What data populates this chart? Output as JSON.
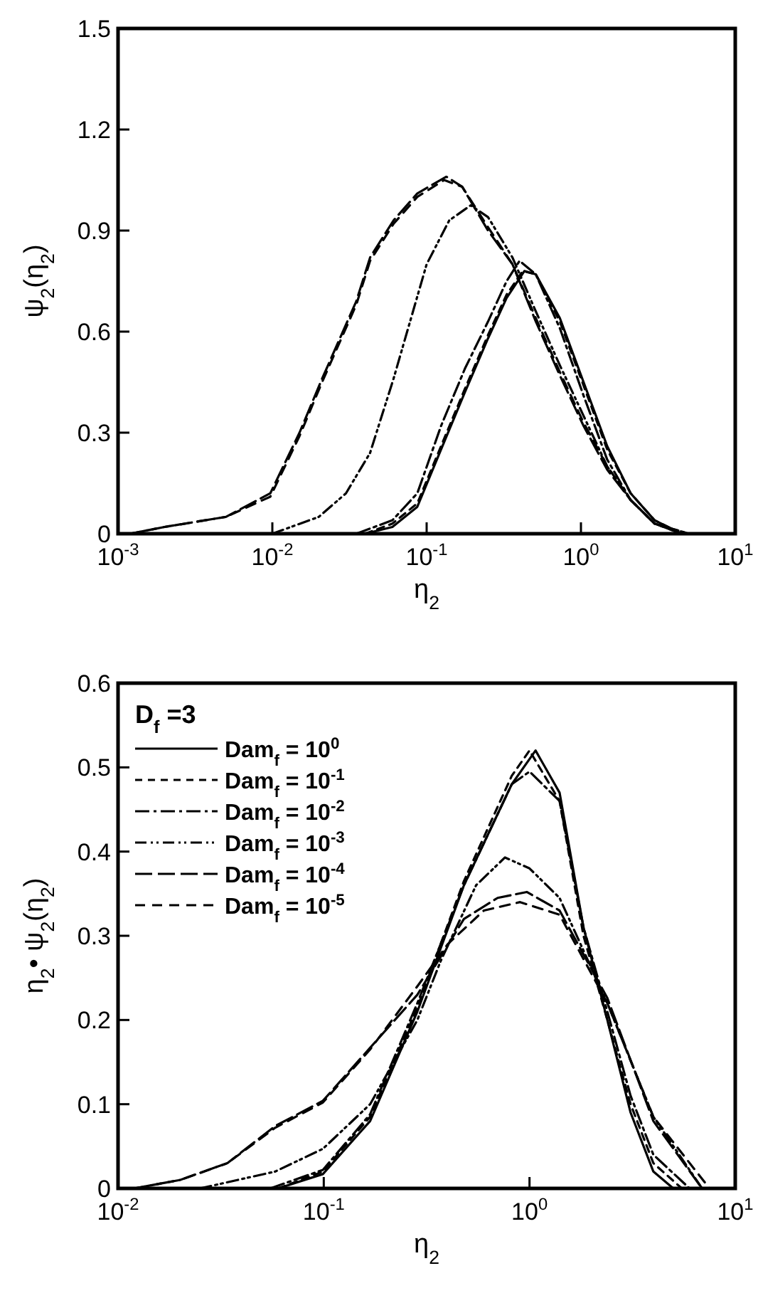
{
  "chart_data": [
    {
      "type": "line",
      "xlabel": "η$_{2}$",
      "ylabel": "ψ$_{2}$(η$_{2}$)",
      "log": "x",
      "xlim": [
        0.001,
        10
      ],
      "ylim": [
        0,
        1.5
      ],
      "xticks": [
        {
          "value": 0.001,
          "label": "10$^{-3}$"
        },
        {
          "value": 0.01,
          "label": "10$^{-2}$"
        },
        {
          "value": 0.1,
          "label": "10$^{-1}$"
        },
        {
          "value": 1,
          "label": "10$^{0}$"
        },
        {
          "value": 10,
          "label": "10$^{1}$"
        }
      ],
      "yticks": [
        {
          "value": 0,
          "label": "0"
        },
        {
          "value": 0.3,
          "label": "0.3"
        },
        {
          "value": 0.6,
          "label": "0.6"
        },
        {
          "value": 0.9,
          "label": "0.9"
        },
        {
          "value": 1.2,
          "label": "1.2"
        },
        {
          "value": 1.5,
          "label": "1.5"
        }
      ],
      "legend": false,
      "grid": false,
      "series": [
        {
          "color": "#000000",
          "line_style": "solid",
          "x": [
            0.04,
            0.06,
            0.087,
            0.124,
            0.177,
            0.25,
            0.33,
            0.43,
            0.51,
            0.73,
            1.04,
            1.48,
            2.1,
            3,
            4.5
          ],
          "values": [
            0,
            0.02,
            0.08,
            0.25,
            0.42,
            0.58,
            0.7,
            0.78,
            0.77,
            0.64,
            0.45,
            0.26,
            0.12,
            0.04,
            0
          ]
        },
        {
          "color": "#000000",
          "line_style": "dashed",
          "x": [
            0.04,
            0.06,
            0.087,
            0.124,
            0.177,
            0.25,
            0.33,
            0.42,
            0.51,
            0.73,
            1.04,
            1.48,
            2.1,
            3,
            4.5
          ],
          "values": [
            0,
            0.03,
            0.09,
            0.26,
            0.43,
            0.59,
            0.71,
            0.78,
            0.77,
            0.63,
            0.44,
            0.25,
            0.12,
            0.04,
            0
          ]
        },
        {
          "color": "#000000",
          "line_style": "dashdot",
          "x": [
            0.035,
            0.06,
            0.087,
            0.124,
            0.177,
            0.25,
            0.33,
            0.4,
            0.51,
            0.73,
            1.04,
            1.48,
            2.1,
            3,
            5
          ],
          "values": [
            0,
            0.04,
            0.12,
            0.32,
            0.49,
            0.63,
            0.75,
            0.81,
            0.77,
            0.61,
            0.41,
            0.22,
            0.1,
            0.03,
            0
          ]
        },
        {
          "color": "#000000",
          "line_style": "dashdotdot",
          "x": [
            0.01,
            0.02,
            0.03,
            0.043,
            0.061,
            0.1,
            0.14,
            0.193,
            0.25,
            0.36,
            0.51,
            0.73,
            1.04,
            1.48,
            2.1,
            3,
            5
          ],
          "values": [
            0,
            0.05,
            0.12,
            0.24,
            0.46,
            0.8,
            0.93,
            0.975,
            0.94,
            0.82,
            0.66,
            0.5,
            0.35,
            0.2,
            0.1,
            0.03,
            0
          ]
        },
        {
          "color": "#000000",
          "line_style": "longdash",
          "x": [
            0.0012,
            0.002,
            0.005,
            0.0097,
            0.015,
            0.021,
            0.035,
            0.043,
            0.061,
            0.087,
            0.134,
            0.17,
            0.25,
            0.36,
            0.51,
            0.73,
            1.04,
            1.48,
            2.1,
            3,
            4.5
          ],
          "values": [
            0,
            0.02,
            0.05,
            0.12,
            0.3,
            0.46,
            0.69,
            0.82,
            0.93,
            1.01,
            1.06,
            1.03,
            0.9,
            0.8,
            0.63,
            0.47,
            0.32,
            0.19,
            0.1,
            0.03,
            0
          ]
        },
        {
          "color": "#000000",
          "line_style": "mediumdash",
          "x": [
            0.0012,
            0.002,
            0.005,
            0.0097,
            0.015,
            0.021,
            0.035,
            0.043,
            0.061,
            0.087,
            0.13,
            0.17,
            0.25,
            0.36,
            0.51,
            0.73,
            1.04,
            1.48,
            2.1,
            3,
            4.5
          ],
          "values": [
            0,
            0.02,
            0.05,
            0.11,
            0.29,
            0.45,
            0.68,
            0.81,
            0.92,
            1.0,
            1.05,
            1.03,
            0.91,
            0.8,
            0.64,
            0.48,
            0.33,
            0.2,
            0.1,
            0.03,
            0
          ]
        }
      ]
    },
    {
      "type": "line",
      "xlabel": "η$_{2}$",
      "ylabel": "η$_{2}$• ψ$_{2}$(η$_{2}$)",
      "log": "x",
      "xlim": [
        0.01,
        10
      ],
      "ylim": [
        0,
        0.6
      ],
      "xticks": [
        {
          "value": 0.01,
          "label": "10$^{-2}$"
        },
        {
          "value": 0.1,
          "label": "10$^{-1}$"
        },
        {
          "value": 1,
          "label": "10$^{0}$"
        },
        {
          "value": 10,
          "label": "10$^{1}$"
        }
      ],
      "yticks": [
        {
          "value": 0,
          "label": "0"
        },
        {
          "value": 0.1,
          "label": "0.1"
        },
        {
          "value": 0.2,
          "label": "0.2"
        },
        {
          "value": 0.3,
          "label": "0.3"
        },
        {
          "value": 0.4,
          "label": "0.4"
        },
        {
          "value": 0.5,
          "label": "0.5"
        },
        {
          "value": 0.6,
          "label": "0.6"
        }
      ],
      "legend": "top left",
      "legend_title": "D$_{f}$ =3",
      "grid": false,
      "series": [
        {
          "name": "Dam$_{f}$ = 10$^{0}$",
          "color": "#000000",
          "line_style": "solid",
          "x": [
            0.06,
            0.099,
            0.168,
            0.285,
            0.48,
            0.82,
            1.07,
            1.4,
            1.83,
            2.39,
            3.1,
            4.0,
            5.0
          ],
          "values": [
            0,
            0.017,
            0.08,
            0.21,
            0.36,
            0.48,
            0.52,
            0.47,
            0.31,
            0.2,
            0.09,
            0.02,
            0
          ]
        },
        {
          "name": "Dam$_{f}$ = 10$^{-1}$",
          "color": "#000000",
          "line_style": "dashed",
          "x": [
            0.06,
            0.099,
            0.168,
            0.285,
            0.48,
            0.82,
            1.0,
            1.4,
            1.83,
            2.39,
            3.1,
            4.0,
            5.5
          ],
          "values": [
            0,
            0.02,
            0.085,
            0.215,
            0.365,
            0.49,
            0.52,
            0.46,
            0.3,
            0.2,
            0.1,
            0.03,
            0
          ]
        },
        {
          "name": "Dam$_{f}$ = 10$^{-2}$",
          "color": "#000000",
          "line_style": "dashdot",
          "x": [
            0.055,
            0.099,
            0.168,
            0.285,
            0.48,
            0.82,
            1.0,
            1.4,
            1.83,
            2.39,
            3.1,
            4.0,
            6.0
          ],
          "values": [
            0,
            0.022,
            0.088,
            0.22,
            0.36,
            0.48,
            0.495,
            0.46,
            0.31,
            0.21,
            0.11,
            0.04,
            0
          ]
        },
        {
          "name": "Dam$_{f}$ = 10$^{-3}$",
          "color": "#000000",
          "line_style": "dashdotdot",
          "x": [
            0.025,
            0.058,
            0.099,
            0.168,
            0.285,
            0.37,
            0.55,
            0.76,
            1.0,
            1.4,
            2.39,
            4.0,
            6.9
          ],
          "values": [
            0,
            0.02,
            0.047,
            0.1,
            0.2,
            0.27,
            0.36,
            0.393,
            0.38,
            0.345,
            0.22,
            0.085,
            0
          ]
        },
        {
          "name": "Dam$_{f}$ = 10$^{-4}$",
          "color": "#000000",
          "line_style": "longdash",
          "x": [
            0.012,
            0.02,
            0.034,
            0.058,
            0.099,
            0.168,
            0.285,
            0.48,
            0.7,
            0.97,
            1.4,
            2.39,
            4.0,
            6.9
          ],
          "values": [
            0,
            0.01,
            0.03,
            0.074,
            0.104,
            0.167,
            0.23,
            0.32,
            0.345,
            0.352,
            0.33,
            0.226,
            0.08,
            0
          ]
        },
        {
          "name": "Dam$_{f}$ = 10$^{-5}$",
          "color": "#000000",
          "line_style": "mediumdash",
          "x": [
            0.012,
            0.02,
            0.034,
            0.058,
            0.099,
            0.168,
            0.285,
            0.4,
            0.6,
            0.9,
            1.4,
            2.39,
            4.0,
            7.5
          ],
          "values": [
            0,
            0.01,
            0.03,
            0.072,
            0.102,
            0.165,
            0.24,
            0.29,
            0.33,
            0.34,
            0.325,
            0.22,
            0.085,
            0
          ]
        }
      ]
    }
  ]
}
